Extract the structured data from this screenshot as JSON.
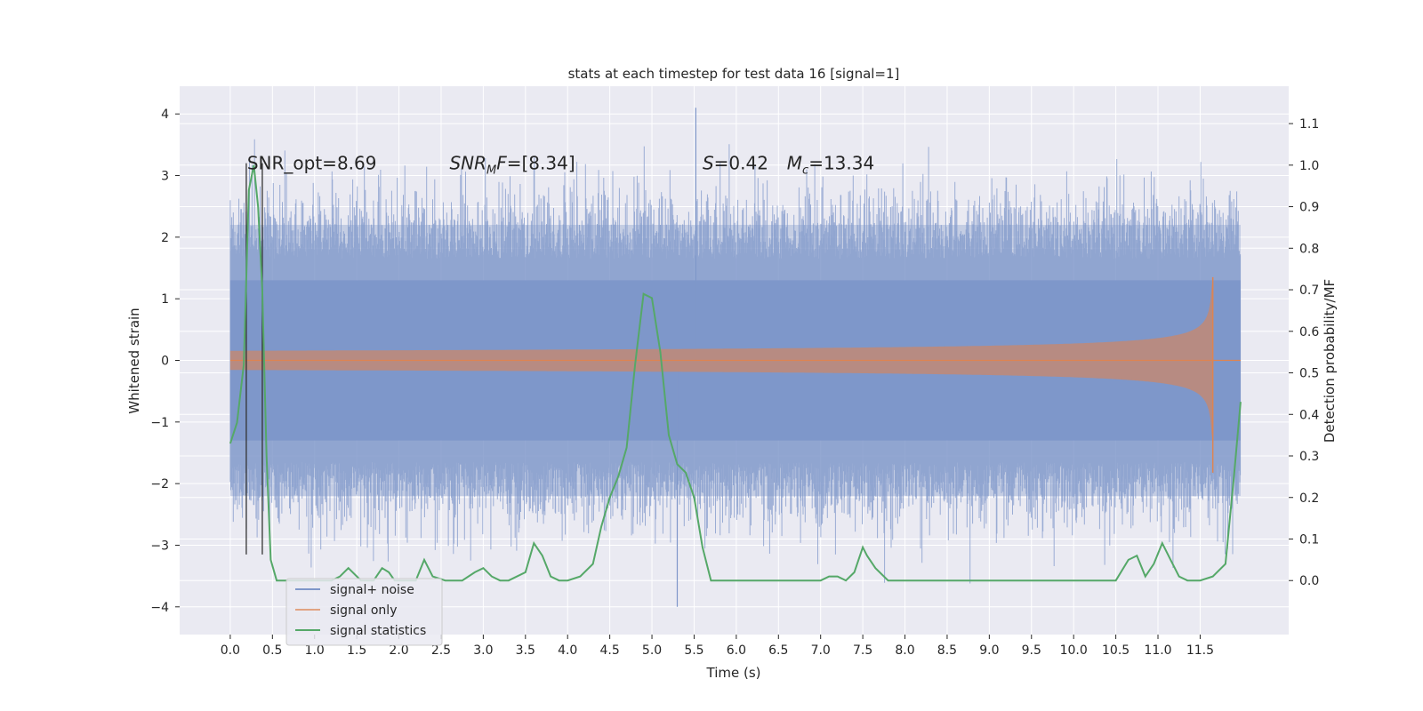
{
  "chart_data": {
    "type": "line",
    "title": "stats at each timestep for test data 16 [signal=1]",
    "xlabel": "Time (s)",
    "ylabel": "Whitened strain",
    "y2label": "Detection probability/MF",
    "xlim": [
      -0.6,
      12.55
    ],
    "ylim": [
      -4.45,
      4.45
    ],
    "y2lim": [
      -0.13,
      1.19
    ],
    "x_ticks": [
      0.0,
      0.5,
      1.0,
      1.5,
      2.0,
      2.5,
      3.0,
      3.5,
      4.0,
      4.5,
      5.0,
      5.5,
      6.0,
      6.5,
      7.0,
      7.5,
      8.0,
      8.5,
      9.0,
      9.5,
      10.0,
      10.5,
      11.0,
      11.5
    ],
    "x_tick_labels": [
      "0.0",
      "0.5",
      "1.0",
      "1.5",
      "2.0",
      "2.5",
      "3.0",
      "3.5",
      "4.0",
      "4.5",
      "5.0",
      "5.5",
      "6.0",
      "6.5",
      "7.0",
      "7.5",
      "8.0",
      "8.5",
      "9.0",
      "9.5",
      "10.0",
      "10.5",
      "11.0",
      "11.5"
    ],
    "y_ticks": [
      -4,
      -3,
      -2,
      -1,
      0,
      1,
      2,
      3,
      4
    ],
    "y_tick_labels": [
      "−4",
      "−3",
      "−2",
      "−1",
      "0",
      "1",
      "2",
      "3",
      "4"
    ],
    "y2_ticks": [
      0.0,
      0.1,
      0.2,
      0.3,
      0.4,
      0.5,
      0.6,
      0.7,
      0.8,
      0.9,
      1.0,
      1.1
    ],
    "y2_tick_labels": [
      "0.0",
      "0.1",
      "0.2",
      "0.3",
      "0.4",
      "0.5",
      "0.6",
      "0.7",
      "0.8",
      "0.9",
      "1.0",
      "1.1"
    ],
    "grid": true,
    "legend_position": "lower-left",
    "annotations": [
      {
        "text": "SNR_opt=8.69",
        "x": 0.2,
        "y": 3.2
      },
      {
        "text": "SNR",
        "sub": "M",
        "tail": "F=[8.34]",
        "italic": true,
        "x": 2.6,
        "y": 3.2
      },
      {
        "text": "S",
        "tail": "=0.42",
        "x": 5.6,
        "y": 3.2
      },
      {
        "text": "M",
        "sub": "c",
        "tail": "=13.34",
        "x": 6.6,
        "y": 3.2
      }
    ],
    "markers": {
      "x": [
        0.19,
        0.38
      ],
      "y_bottom": -3.15,
      "y_top": 3.2,
      "color": "#333333"
    },
    "series": [
      {
        "name": "signal+ noise",
        "color": "#7f97c9",
        "style": "whitened noise band",
        "x_start": 0.0,
        "x_end": 11.98,
        "core_envelope": [
          -1.3,
          1.3
        ],
        "typical_envelope": [
          -2.2,
          2.2
        ],
        "max_spike": 4.1,
        "min_spike": -4.0
      },
      {
        "name": "signal only",
        "color": "#dd8452",
        "style": "chirp",
        "x_start": 0.0,
        "t_merge": 11.65,
        "peak_amplitude": 1.35
      },
      {
        "name": "signal statistics",
        "color": "#55a868",
        "axis": "y2",
        "x": [
          0.0,
          0.08,
          0.16,
          0.22,
          0.28,
          0.33,
          0.38,
          0.43,
          0.48,
          0.55,
          0.62,
          0.8,
          1.0,
          1.2,
          1.3,
          1.4,
          1.55,
          1.7,
          1.8,
          1.88,
          1.95,
          2.05,
          2.2,
          2.3,
          2.4,
          2.55,
          2.75,
          2.9,
          3.0,
          3.1,
          3.2,
          3.3,
          3.5,
          3.6,
          3.7,
          3.8,
          3.9,
          4.0,
          4.15,
          4.3,
          4.4,
          4.5,
          4.6,
          4.7,
          4.8,
          4.9,
          5.0,
          5.1,
          5.2,
          5.3,
          5.4,
          5.5,
          5.6,
          5.7,
          5.8,
          6.0,
          6.5,
          7.0,
          7.1,
          7.2,
          7.3,
          7.4,
          7.5,
          7.55,
          7.65,
          7.8,
          8.0,
          8.2,
          8.5,
          9.0,
          9.5,
          10.0,
          10.5,
          10.65,
          10.75,
          10.85,
          10.95,
          11.05,
          11.15,
          11.25,
          11.35,
          11.5,
          11.65,
          11.8,
          11.9,
          11.98
        ],
        "values": [
          0.33,
          0.38,
          0.52,
          0.94,
          1.0,
          0.9,
          0.7,
          0.3,
          0.05,
          0.0,
          0.0,
          0.0,
          0.0,
          0.0,
          0.01,
          0.03,
          0.0,
          0.0,
          0.03,
          0.02,
          0.0,
          0.0,
          0.0,
          0.05,
          0.01,
          0.0,
          0.0,
          0.02,
          0.03,
          0.01,
          0.0,
          0.0,
          0.02,
          0.09,
          0.06,
          0.01,
          0.0,
          0.0,
          0.01,
          0.04,
          0.13,
          0.2,
          0.25,
          0.32,
          0.52,
          0.69,
          0.68,
          0.55,
          0.35,
          0.28,
          0.26,
          0.2,
          0.08,
          0.0,
          0.0,
          0.0,
          0.0,
          0.0,
          0.01,
          0.01,
          0.0,
          0.02,
          0.08,
          0.06,
          0.03,
          0.0,
          0.0,
          0.0,
          0.0,
          0.0,
          0.0,
          0.0,
          0.0,
          0.05,
          0.06,
          0.01,
          0.04,
          0.09,
          0.05,
          0.01,
          0.0,
          0.0,
          0.01,
          0.04,
          0.25,
          0.43
        ]
      }
    ]
  }
}
